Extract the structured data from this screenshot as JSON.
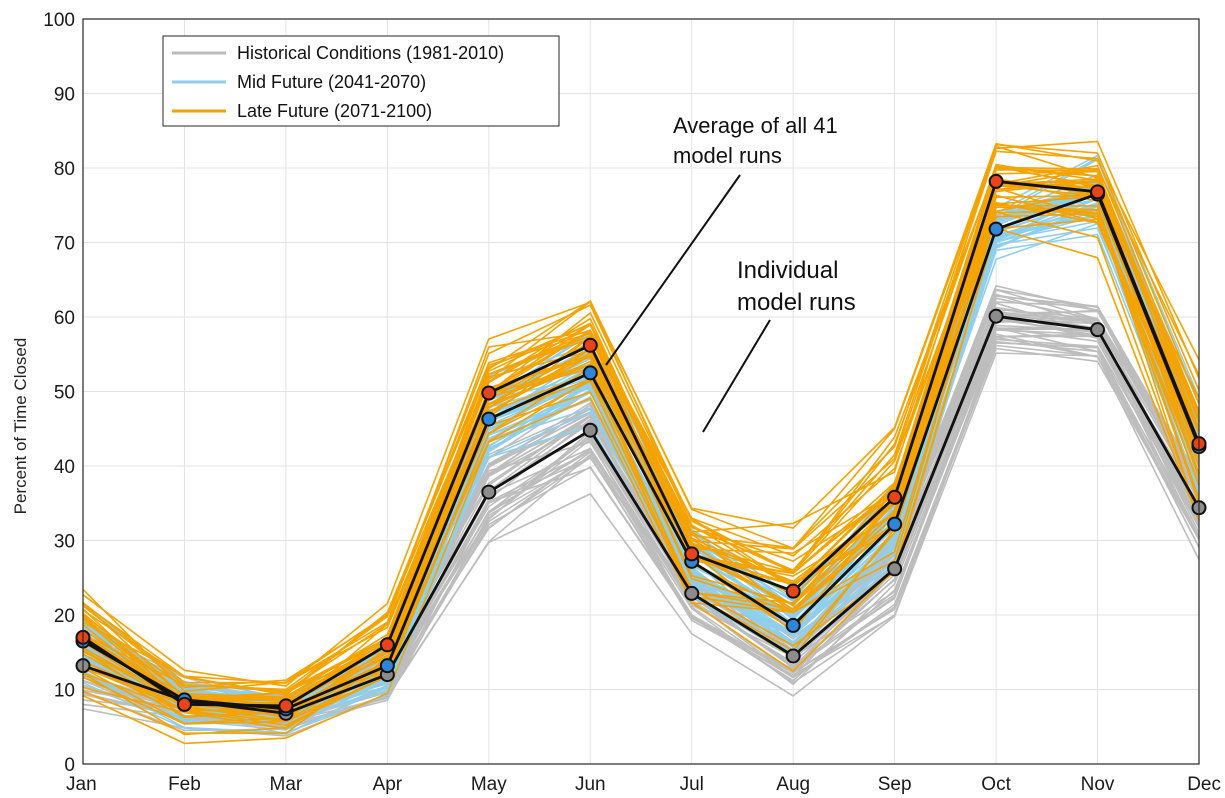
{
  "chart_data": {
    "type": "line",
    "title": "",
    "xlabel": "",
    "ylabel": "Percent of Time Closed",
    "ylim": [
      0,
      100
    ],
    "yticks": [
      0,
      10,
      20,
      30,
      40,
      50,
      60,
      70,
      80,
      90,
      100
    ],
    "categories": [
      "Jan",
      "Feb",
      "Mar",
      "Apr",
      "May",
      "Jun",
      "Jul",
      "Aug",
      "Sep",
      "Oct",
      "Nov",
      "Dec"
    ],
    "grid": true,
    "legend_position": "top-left",
    "legend": [
      {
        "label": "Historical Conditions (1981-2010)",
        "color": "#bdbdbd"
      },
      {
        "label": "Mid Future (2041-2070)",
        "color": "#8ecfee"
      },
      {
        "label": "Late Future (2071-2100)",
        "color": "#f4a300"
      }
    ],
    "series": [
      {
        "name": "Historical Conditions (1981-2010)",
        "color": "#bdbdbd",
        "marker_color": "#8c8c8c",
        "values": [
          13.2,
          8.5,
          6.8,
          12.0,
          36.5,
          44.8,
          22.9,
          14.5,
          26.2,
          60.1,
          58.3,
          34.4
        ]
      },
      {
        "name": "Mid Future (2041-2070)",
        "color": "#8ecfee",
        "marker_color": "#2f86d6",
        "values": [
          16.5,
          8.6,
          7.4,
          13.2,
          46.3,
          52.5,
          27.2,
          18.6,
          32.2,
          71.8,
          76.5,
          42.6
        ]
      },
      {
        "name": "Late Future (2071-2100)",
        "color": "#f4a300",
        "marker_color": "#e8441c",
        "values": [
          17.0,
          8.0,
          7.8,
          16.0,
          49.8,
          56.2,
          28.2,
          23.2,
          35.8,
          78.2,
          76.8,
          43.0
        ]
      }
    ],
    "annotations": [
      {
        "text_lines": [
          "Average of all 41",
          "model runs"
        ]
      },
      {
        "text_lines": [
          "Individual",
          "model runs"
        ]
      }
    ]
  }
}
